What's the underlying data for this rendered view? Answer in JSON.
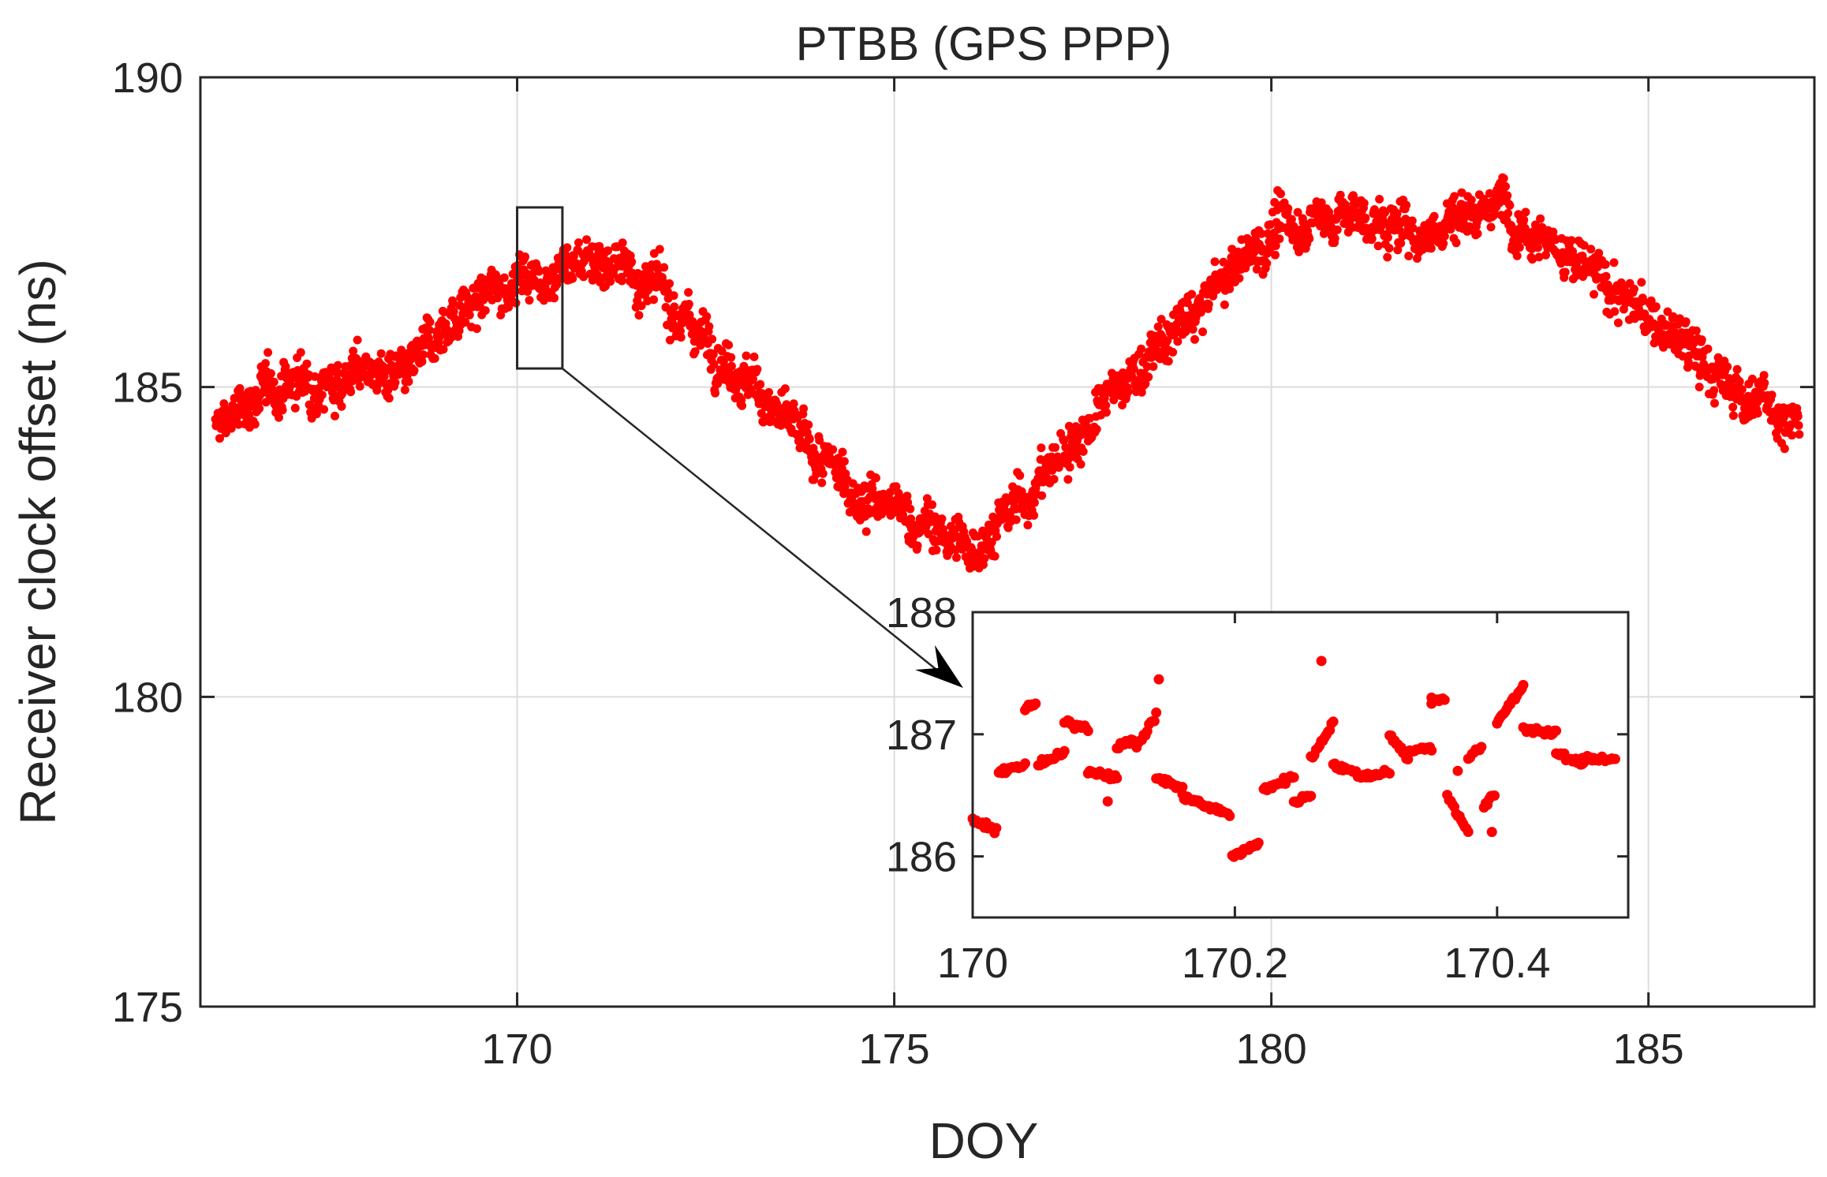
{
  "chart_data": [
    {
      "id": "main",
      "type": "scatter",
      "title": "PTBB (GPS PPP)",
      "xlabel": "DOY",
      "ylabel": "Receiver clock offset (ns)",
      "xlim": [
        165.8,
        187.2
      ],
      "ylim": [
        175,
        190
      ],
      "xticks": [
        170,
        175,
        180,
        185
      ],
      "yticks": [
        175,
        180,
        185,
        190
      ],
      "grid": true,
      "legend": "none",
      "marker_color": "#ff0000",
      "trend": [
        {
          "x": 166.0,
          "y": 184.3
        },
        {
          "x": 166.5,
          "y": 184.8
        },
        {
          "x": 167.0,
          "y": 185.1
        },
        {
          "x": 167.5,
          "y": 185.1
        },
        {
          "x": 168.0,
          "y": 185.3
        },
        {
          "x": 168.5,
          "y": 185.0
        },
        {
          "x": 169.0,
          "y": 186.0
        },
        {
          "x": 169.5,
          "y": 186.4
        },
        {
          "x": 170.0,
          "y": 186.8
        },
        {
          "x": 170.5,
          "y": 186.9
        },
        {
          "x": 171.0,
          "y": 187.1
        },
        {
          "x": 171.5,
          "y": 186.9
        },
        {
          "x": 172.0,
          "y": 186.4
        },
        {
          "x": 172.5,
          "y": 185.8
        },
        {
          "x": 173.0,
          "y": 185.2
        },
        {
          "x": 173.5,
          "y": 184.5
        },
        {
          "x": 174.0,
          "y": 183.8
        },
        {
          "x": 174.5,
          "y": 183.3
        },
        {
          "x": 175.0,
          "y": 183.0
        },
        {
          "x": 175.5,
          "y": 182.7
        },
        {
          "x": 176.0,
          "y": 182.4
        },
        {
          "x": 176.5,
          "y": 182.9
        },
        {
          "x": 177.0,
          "y": 183.6
        },
        {
          "x": 177.5,
          "y": 184.3
        },
        {
          "x": 178.0,
          "y": 185.0
        },
        {
          "x": 178.5,
          "y": 185.6
        },
        {
          "x": 179.0,
          "y": 186.2
        },
        {
          "x": 179.5,
          "y": 186.9
        },
        {
          "x": 180.0,
          "y": 187.5
        },
        {
          "x": 180.5,
          "y": 187.7
        },
        {
          "x": 181.0,
          "y": 187.8
        },
        {
          "x": 181.5,
          "y": 187.6
        },
        {
          "x": 182.0,
          "y": 187.5
        },
        {
          "x": 182.5,
          "y": 187.8
        },
        {
          "x": 183.0,
          "y": 188.0
        },
        {
          "x": 183.5,
          "y": 187.6
        },
        {
          "x": 184.0,
          "y": 187.0
        },
        {
          "x": 184.5,
          "y": 186.6
        },
        {
          "x": 185.0,
          "y": 186.1
        },
        {
          "x": 185.5,
          "y": 185.7
        },
        {
          "x": 186.0,
          "y": 185.0
        },
        {
          "x": 186.5,
          "y": 184.8
        },
        {
          "x": 187.0,
          "y": 184.4
        }
      ],
      "zoom_box": {
        "x0": 170.0,
        "x1": 170.6,
        "y0": 185.3,
        "y1": 187.9
      }
    },
    {
      "id": "inset",
      "type": "scatter",
      "xlim": [
        170.0,
        170.5
      ],
      "ylim": [
        185.5,
        188.0
      ],
      "xticks": [
        170,
        170.2,
        170.4
      ],
      "yticks": [
        186,
        187,
        188
      ],
      "grid": false,
      "marker_color": "#ff0000",
      "segments": [
        {
          "x0": 170.0,
          "x1": 170.018,
          "y0": 186.3,
          "y1": 186.2
        },
        {
          "x0": 170.02,
          "x1": 170.04,
          "y0": 186.7,
          "y1": 186.75
        },
        {
          "x0": 170.04,
          "x1": 170.048,
          "y0": 187.2,
          "y1": 187.25
        },
        {
          "x0": 170.05,
          "x1": 170.06,
          "y0": 186.75,
          "y1": 186.8
        },
        {
          "x0": 170.062,
          "x1": 170.07,
          "y0": 186.8,
          "y1": 186.85
        },
        {
          "x0": 170.07,
          "x1": 170.088,
          "y0": 187.1,
          "y1": 187.05
        },
        {
          "x0": 170.088,
          "x1": 170.11,
          "y0": 186.7,
          "y1": 186.65
        },
        {
          "x0": 170.11,
          "x1": 170.125,
          "y0": 186.9,
          "y1": 186.95
        },
        {
          "x0": 170.125,
          "x1": 170.14,
          "y0": 186.9,
          "y1": 187.15
        },
        {
          "x0": 170.14,
          "x1": 170.16,
          "y0": 186.65,
          "y1": 186.55
        },
        {
          "x0": 170.16,
          "x1": 170.18,
          "y0": 186.5,
          "y1": 186.4
        },
        {
          "x0": 170.18,
          "x1": 170.196,
          "y0": 186.4,
          "y1": 186.35
        },
        {
          "x0": 170.198,
          "x1": 170.218,
          "y0": 186.0,
          "y1": 186.1
        },
        {
          "x0": 170.222,
          "x1": 170.245,
          "y0": 186.55,
          "y1": 186.65
        },
        {
          "x0": 170.245,
          "x1": 170.258,
          "y0": 186.45,
          "y1": 186.5
        },
        {
          "x0": 170.258,
          "x1": 170.275,
          "y0": 186.8,
          "y1": 187.1
        },
        {
          "x0": 170.275,
          "x1": 170.3,
          "y0": 186.75,
          "y1": 186.65
        },
        {
          "x0": 170.3,
          "x1": 170.318,
          "y0": 186.65,
          "y1": 186.7
        },
        {
          "x0": 170.318,
          "x1": 170.332,
          "y0": 187.0,
          "y1": 186.8
        },
        {
          "x0": 170.332,
          "x1": 170.35,
          "y0": 186.85,
          "y1": 186.9
        },
        {
          "x0": 170.35,
          "x1": 170.36,
          "y0": 187.25,
          "y1": 187.3
        },
        {
          "x0": 170.362,
          "x1": 170.378,
          "y0": 186.5,
          "y1": 186.2
        },
        {
          "x0": 170.378,
          "x1": 170.388,
          "y0": 186.8,
          "y1": 186.9
        },
        {
          "x0": 170.39,
          "x1": 170.398,
          "y0": 186.4,
          "y1": 186.5
        },
        {
          "x0": 170.4,
          "x1": 170.42,
          "y0": 187.1,
          "y1": 187.4
        },
        {
          "x0": 170.42,
          "x1": 170.445,
          "y0": 187.05,
          "y1": 187.0
        },
        {
          "x0": 170.445,
          "x1": 170.465,
          "y0": 186.85,
          "y1": 186.75
        },
        {
          "x0": 170.465,
          "x1": 170.49,
          "y0": 186.8,
          "y1": 186.8
        }
      ],
      "outliers": [
        {
          "x": 170.103,
          "y": 186.45
        },
        {
          "x": 170.142,
          "y": 187.45
        },
        {
          "x": 170.266,
          "y": 187.6
        },
        {
          "x": 170.35,
          "y": 187.3
        },
        {
          "x": 170.37,
          "y": 186.7
        },
        {
          "x": 170.396,
          "y": 186.2
        }
      ]
    }
  ]
}
